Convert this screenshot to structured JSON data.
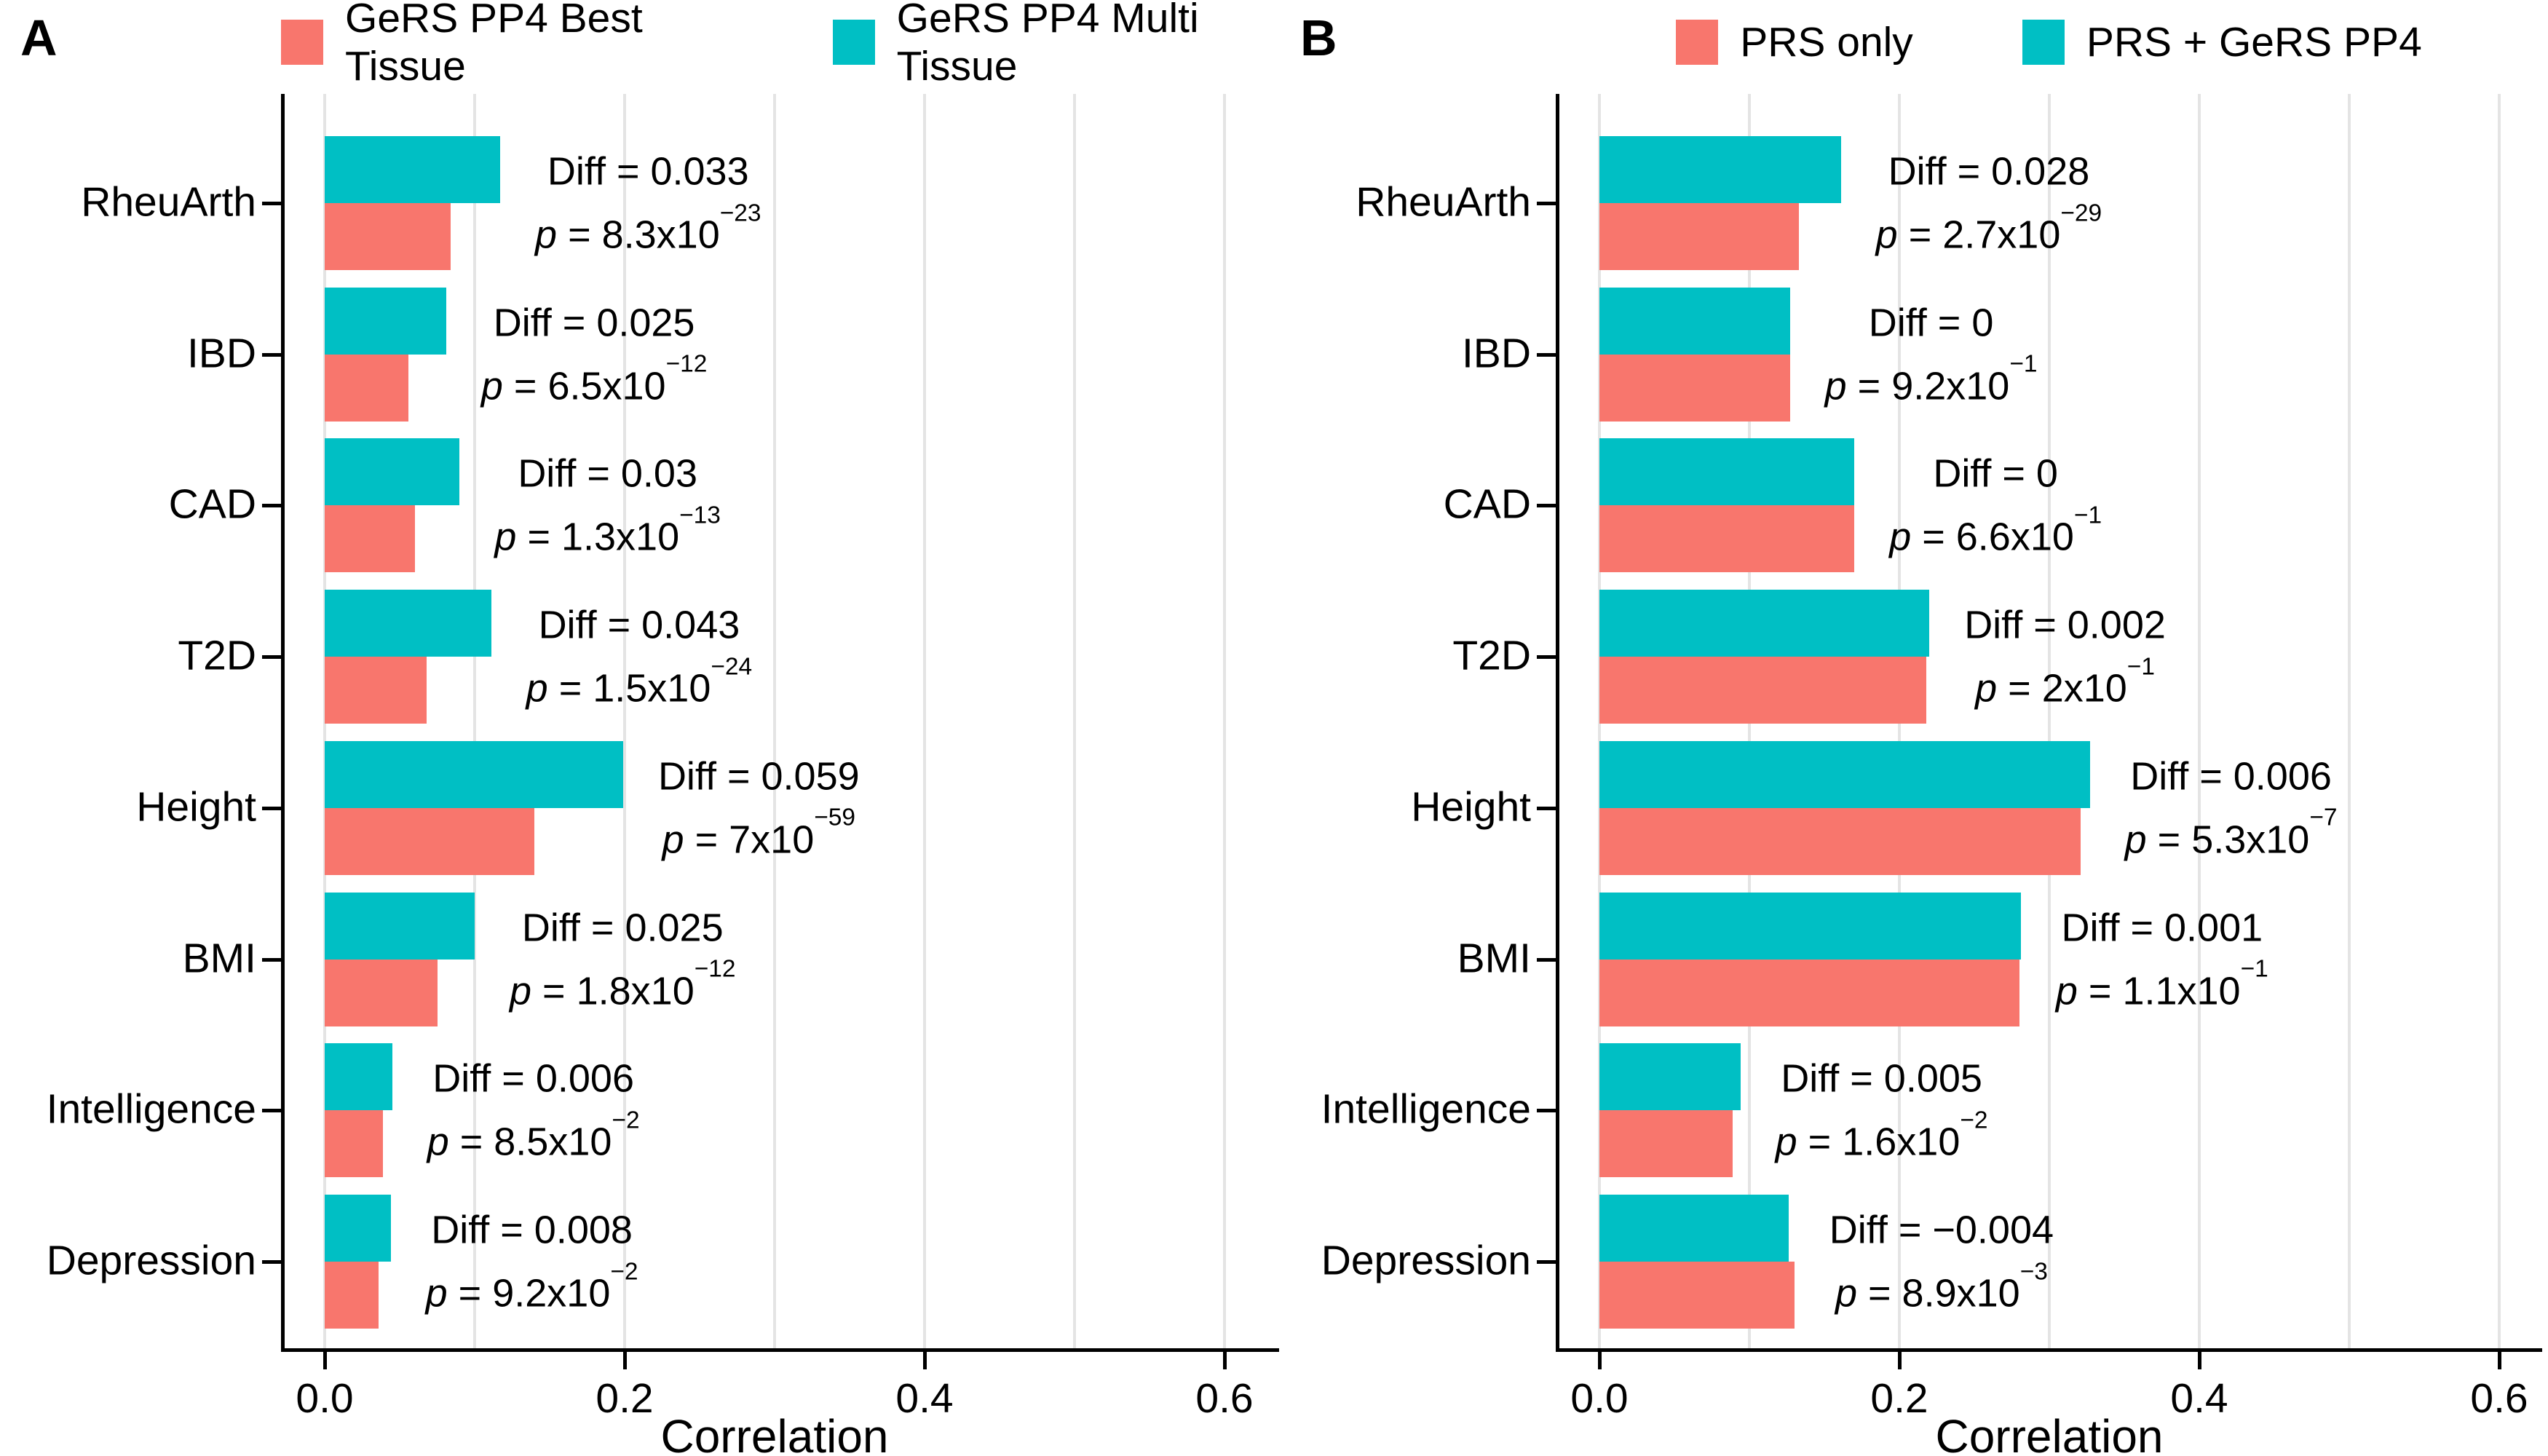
{
  "chart_data": [
    {
      "type": "bar",
      "orientation": "horizontal",
      "panel_label": "A",
      "xlabel": "Correlation",
      "xlim": [
        0,
        0.64
      ],
      "grid_step": 0.1,
      "xticks": {
        "values": [
          0,
          0.2,
          0.4,
          0.6
        ],
        "labels": [
          "0.0",
          "0.2",
          "0.4",
          "0.6"
        ]
      },
      "legend_position": "top",
      "categories": [
        "RheuArth",
        "IBD",
        "CAD",
        "T2D",
        "Height",
        "BMI",
        "Intelligence",
        "Depression"
      ],
      "series": [
        {
          "name": "GeRS PP4 Best Tissue",
          "color": "#F8766D",
          "values": [
            0.084,
            0.056,
            0.06,
            0.068,
            0.14,
            0.075,
            0.039,
            0.036
          ]
        },
        {
          "name": "GeRS PP4 Multi Tissue",
          "color": "#00BFC4",
          "values": [
            0.117,
            0.081,
            0.09,
            0.111,
            0.199,
            0.1,
            0.045,
            0.044
          ]
        }
      ],
      "annotations": [
        {
          "diff": "Diff = 0.033",
          "p_base": "8.3x10",
          "p_exp": "−23"
        },
        {
          "diff": "Diff = 0.025",
          "p_base": "6.5x10",
          "p_exp": "−12"
        },
        {
          "diff": "Diff = 0.03",
          "p_base": "1.3x10",
          "p_exp": "−13"
        },
        {
          "diff": "Diff = 0.043",
          "p_base": "1.5x10",
          "p_exp": "−24"
        },
        {
          "diff": "Diff = 0.059",
          "p_base": "7x10",
          "p_exp": "−59"
        },
        {
          "diff": "Diff = 0.025",
          "p_base": "1.8x10",
          "p_exp": "−12"
        },
        {
          "diff": "Diff = 0.006",
          "p_base": "8.5x10",
          "p_exp": "−2"
        },
        {
          "diff": "Diff = 0.008",
          "p_base": "9.2x10",
          "p_exp": "−2"
        }
      ]
    },
    {
      "type": "bar",
      "orientation": "horizontal",
      "panel_label": "B",
      "xlabel": "Correlation",
      "xlim": [
        0,
        0.64
      ],
      "grid_step": 0.1,
      "xticks": {
        "values": [
          0,
          0.2,
          0.4,
          0.6
        ],
        "labels": [
          "0.0",
          "0.2",
          "0.4",
          "0.6"
        ]
      },
      "legend_position": "top",
      "categories": [
        "RheuArth",
        "IBD",
        "CAD",
        "T2D",
        "Height",
        "BMI",
        "Intelligence",
        "Depression"
      ],
      "series": [
        {
          "name": "PRS only",
          "color": "#F8766D",
          "values": [
            0.133,
            0.127,
            0.17,
            0.218,
            0.321,
            0.28,
            0.089,
            0.13
          ]
        },
        {
          "name": "PRS + GeRS PP4",
          "color": "#00BFC4",
          "values": [
            0.161,
            0.127,
            0.17,
            0.22,
            0.327,
            0.281,
            0.094,
            0.126
          ]
        }
      ],
      "annotations": [
        {
          "diff": "Diff = 0.028",
          "p_base": "2.7x10",
          "p_exp": "−29"
        },
        {
          "diff": "Diff = 0",
          "p_base": "9.2x10",
          "p_exp": "−1"
        },
        {
          "diff": "Diff = 0",
          "p_base": "6.6x10",
          "p_exp": "−1"
        },
        {
          "diff": "Diff = 0.002",
          "p_base": "2x10",
          "p_exp": "−1"
        },
        {
          "diff": "Diff = 0.006",
          "p_base": "5.3x10",
          "p_exp": "−7"
        },
        {
          "diff": "Diff = 0.001",
          "p_base": "1.1x10",
          "p_exp": "−1"
        },
        {
          "diff": "Diff = 0.005",
          "p_base": "1.6x10",
          "p_exp": "−2"
        },
        {
          "diff": "Diff = −0.004",
          "p_base": "8.9x10",
          "p_exp": "−3"
        }
      ]
    }
  ]
}
